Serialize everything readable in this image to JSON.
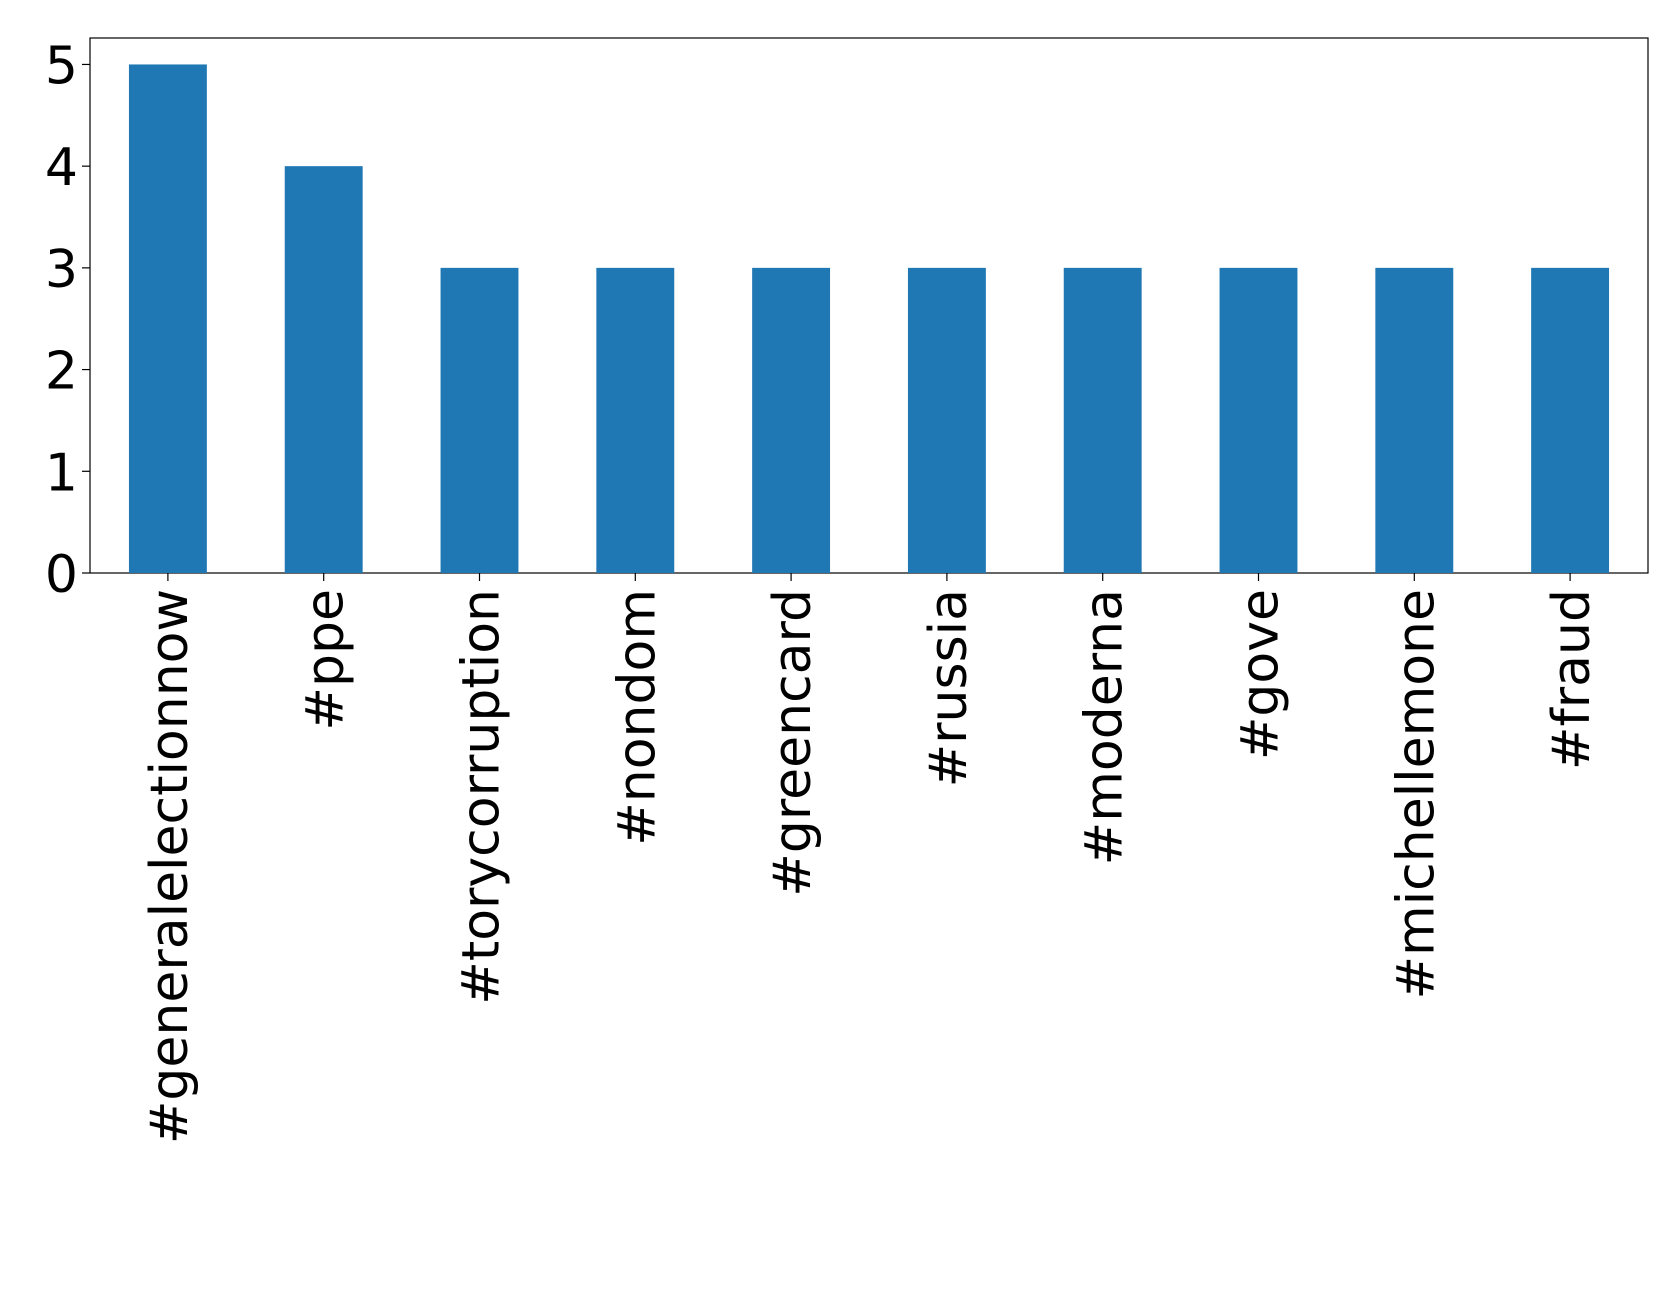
{
  "chart_data": {
    "type": "bar",
    "categories": [
      "#generalelectionnow",
      "#ppe",
      "#torycorruption",
      "#nondom",
      "#greencard",
      "#russia",
      "#moderna",
      "#gove",
      "#michellemone",
      "#fraud"
    ],
    "values": [
      5,
      4,
      3,
      3,
      3,
      3,
      3,
      3,
      3,
      3
    ],
    "color": "#1f77b4",
    "ylim": [
      0,
      5.26
    ],
    "yticks": [
      0,
      1,
      2,
      3,
      4,
      5
    ],
    "grid": false
  }
}
